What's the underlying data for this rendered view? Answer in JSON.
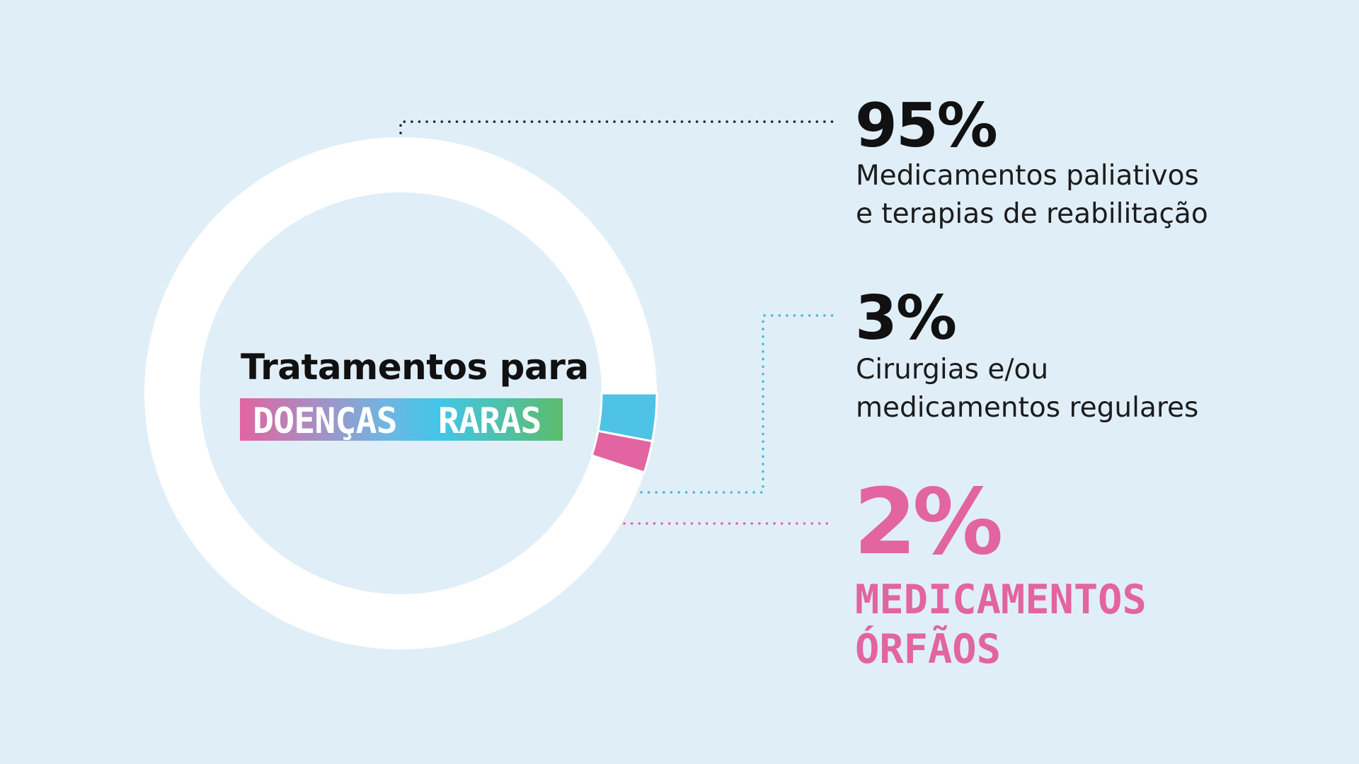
{
  "chart_data": {
    "type": "pie",
    "style": "donut",
    "title": "Tratamentos para",
    "subtitle": "DOENÇAS  RARAS",
    "values": [
      95,
      3,
      2
    ],
    "value_labels": [
      "95%",
      "3%",
      "2%"
    ],
    "labels": [
      [
        "Medicamentos paliativos",
        "e terapias de reabilitação"
      ],
      [
        "Cirurgias e/ou",
        "medicamentos regulares"
      ],
      [
        "MEDICAMENTOS",
        "ÓRFÃOS"
      ]
    ],
    "colors": [
      "#ffffff",
      "#4ec3e6",
      "#e264a0"
    ],
    "label_colors": [
      "#111111",
      "#111111",
      "#e264a0"
    ],
    "leader_colors": [
      "#222222",
      "#43b8de",
      "#e264a0"
    ],
    "legend": "right"
  },
  "background": "#e0eef8"
}
